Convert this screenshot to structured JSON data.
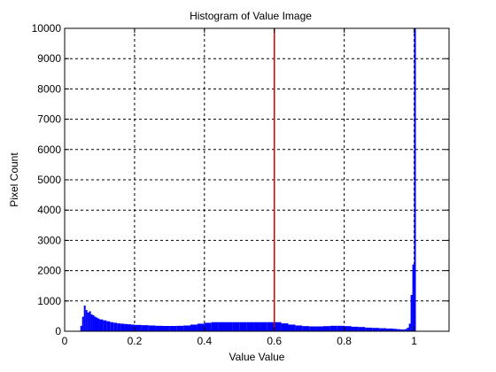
{
  "chart_data": {
    "type": "bar",
    "title": "Histogram of Value Image",
    "xlabel": "Value Value",
    "ylabel": "Pixel Count",
    "xlim": [
      0,
      1.1
    ],
    "ylim": [
      0,
      10000
    ],
    "x_ticks": [
      0,
      0.2,
      0.4,
      0.6,
      0.8,
      1
    ],
    "x_tick_labels": [
      "0",
      "0.2",
      "0.4",
      "0.6",
      "0.8",
      "1"
    ],
    "y_ticks": [
      0,
      1000,
      2000,
      3000,
      4000,
      5000,
      6000,
      7000,
      8000,
      9000,
      10000
    ],
    "y_tick_labels": [
      "0",
      "1000",
      "2000",
      "3000",
      "4000",
      "5000",
      "6000",
      "7000",
      "8000",
      "9000",
      "10000"
    ],
    "grid": true,
    "bar_color": "#0000ff",
    "threshold_color": "#cc0000",
    "series": [
      {
        "x": [
          0.0,
          0.005,
          0.01,
          0.015,
          0.02,
          0.025,
          0.03,
          0.035,
          0.04,
          0.045,
          0.05,
          0.055,
          0.06,
          0.065,
          0.07,
          0.075,
          0.08,
          0.085,
          0.09,
          0.095,
          0.1,
          0.11,
          0.12,
          0.13,
          0.14,
          0.15,
          0.16,
          0.17,
          0.18,
          0.19,
          0.2,
          0.22,
          0.24,
          0.26,
          0.28,
          0.3,
          0.32,
          0.34,
          0.36,
          0.38,
          0.4,
          0.42,
          0.44,
          0.46,
          0.48,
          0.5,
          0.52,
          0.54,
          0.56,
          0.58,
          0.6,
          0.62,
          0.64,
          0.66,
          0.68,
          0.7,
          0.72,
          0.74,
          0.76,
          0.78,
          0.8,
          0.82,
          0.84,
          0.86,
          0.88,
          0.9,
          0.92,
          0.94,
          0.95,
          0.96,
          0.97,
          0.975,
          0.98,
          0.985,
          0.99,
          0.995,
          1.0
        ],
        "values": [
          0,
          0,
          0,
          0,
          0,
          0,
          0,
          0,
          0,
          180,
          480,
          850,
          700,
          620,
          660,
          560,
          530,
          480,
          450,
          420,
          390,
          360,
          330,
          300,
          280,
          260,
          250,
          240,
          230,
          220,
          210,
          200,
          190,
          180,
          175,
          175,
          180,
          190,
          220,
          250,
          280,
          300,
          300,
          300,
          300,
          300,
          300,
          300,
          300,
          300,
          300,
          260,
          220,
          190,
          170,
          160,
          160,
          170,
          180,
          180,
          170,
          150,
          140,
          120,
          110,
          100,
          90,
          80,
          70,
          60,
          60,
          80,
          120,
          250,
          1200,
          2200,
          10000
        ]
      }
    ],
    "threshold_x": 0.6
  }
}
